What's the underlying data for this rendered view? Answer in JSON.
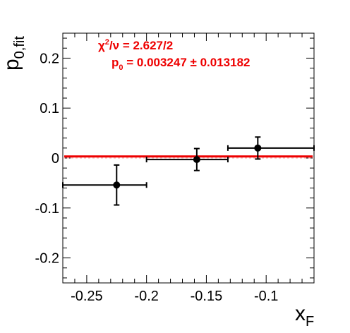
{
  "chart_data": {
    "type": "scatter",
    "title": "",
    "xlabel": "x",
    "xlabel_sub": "F",
    "ylabel": "p",
    "ylabel_sub": "0,fit",
    "xlim": [
      -0.27,
      -0.06
    ],
    "ylim": [
      -0.25,
      0.25
    ],
    "x_ticks": [
      -0.25,
      -0.2,
      -0.15,
      -0.1
    ],
    "x_tick_labels": [
      "-0.25",
      "-0.2",
      "-0.15",
      "-0.1"
    ],
    "y_ticks": [
      -0.2,
      -0.1,
      0,
      0.1,
      0.2
    ],
    "y_tick_labels": [
      "-0.2",
      "-0.1",
      "0",
      "0.1",
      "0.2"
    ],
    "grid": false,
    "series": [
      {
        "points": [
          {
            "x": -0.225,
            "y": -0.054,
            "xlow": -0.27,
            "xhigh": -0.2,
            "yerr": 0.04
          },
          {
            "x": -0.158,
            "y": -0.003,
            "xlow": -0.2,
            "xhigh": -0.132,
            "yerr": 0.022
          },
          {
            "x": -0.107,
            "y": 0.02,
            "xlow": -0.132,
            "xhigh": -0.06,
            "yerr": 0.022
          }
        ],
        "color": "#000000"
      }
    ],
    "fit": {
      "value": 0.003247,
      "error": 0.013182,
      "color": "#ee0000"
    },
    "zero_line": {
      "y": 0,
      "color": "#f4a0a0"
    },
    "annotations": {
      "line1_chi": "χ",
      "line1_sup": "2",
      "line1_rest": "/ν = 2.627/2",
      "line2_p": "p",
      "line2_sub": "0",
      "line2_rest": " = 0.003247 ± 0.013182"
    }
  }
}
